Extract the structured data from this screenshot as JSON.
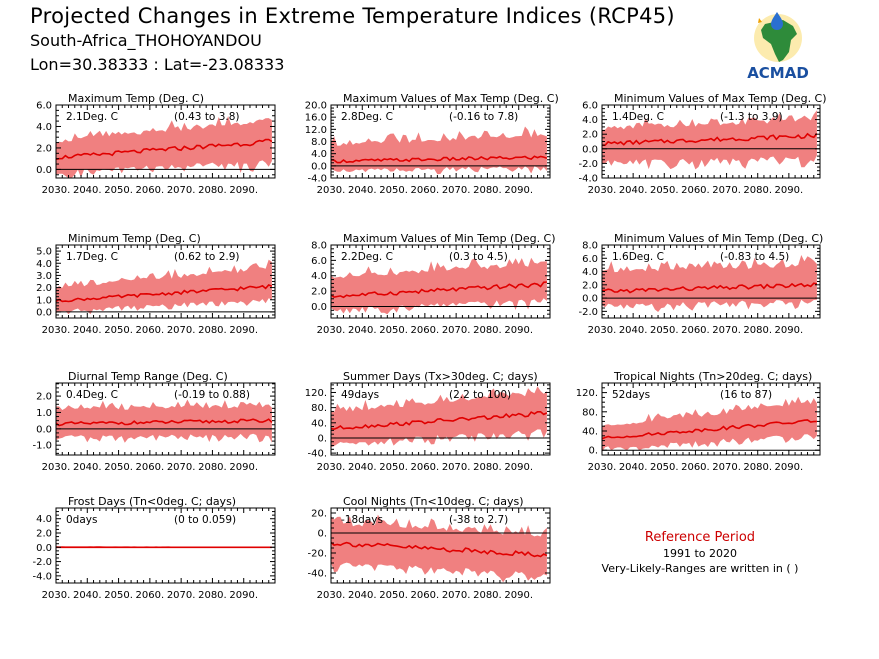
{
  "header": {
    "title": "Projected Changes in Extreme Temperature Indices (RCP45)",
    "subtitle": "South-Africa_THOHOYANDOU",
    "coords": "Lon=30.38333 : Lat=-23.08333"
  },
  "logo": {
    "text": "ACMAD"
  },
  "reference": {
    "title": "Reference Period",
    "years": "1991 to 2020",
    "note": "Very-Likely-Ranges are written in ( )"
  },
  "colors": {
    "band": "#f08080",
    "line": "#e00000",
    "zero": "#000000"
  },
  "chart_data": [
    {
      "type": "area",
      "title": "Maximum Temp (Deg. C)",
      "summary": "2.1Deg. C",
      "range": "(0.43 to 3.8)",
      "x": [
        2030,
        2100
      ],
      "xticks": [
        "2030.",
        "2040.",
        "2050.",
        "2060.",
        "2070.",
        "2080.",
        "2090."
      ],
      "ylim": [
        -0.8,
        6.0
      ],
      "yticks": [
        0.0,
        2.0,
        4.0,
        6.0
      ],
      "ytick_labels": [
        "0.0",
        "2.0",
        "4.0",
        "6.0"
      ],
      "series": [
        {
          "start": 1.1,
          "end": 2.6,
          "lower_start": -0.3,
          "lower_end": 0.8,
          "upper_start": 2.6,
          "upper_end": 4.6
        }
      ]
    },
    {
      "type": "area",
      "title": "Maximum Values of Max Temp (Deg. C)",
      "summary": "2.8Deg. C",
      "range": "(-0.16 to 7.8)",
      "x": [
        2030,
        2100
      ],
      "xticks": [
        "2030.",
        "2040.",
        "2050.",
        "2060.",
        "2070.",
        "2080.",
        "2090."
      ],
      "ylim": [
        -4.0,
        20.0
      ],
      "yticks": [
        -4.0,
        0.0,
        4.0,
        8.0,
        12.0,
        16.0,
        20.0
      ],
      "ytick_labels": [
        "-4.0",
        "0.0",
        "4.0",
        "8.0",
        "12.0",
        "16.0",
        "20.0"
      ],
      "series": [
        {
          "start": 1.5,
          "end": 2.8,
          "lower_start": -1.5,
          "lower_end": -0.5,
          "upper_start": 7.0,
          "upper_end": 10.0
        }
      ]
    },
    {
      "type": "area",
      "title": "Minimum Values of Max Temp (Deg. C)",
      "summary": "1.4Deg. C",
      "range": "(-1.3 to 3.9)",
      "x": [
        2030,
        2100
      ],
      "xticks": [
        "2030.",
        "2040.",
        "2050.",
        "2060.",
        "2070.",
        "2080.",
        "2090."
      ],
      "ylim": [
        -4.0,
        6.0
      ],
      "yticks": [
        -4.0,
        -2.0,
        0.0,
        2.0,
        4.0,
        6.0
      ],
      "ytick_labels": [
        "-4.0",
        "-2.0",
        "0.0",
        "2.0",
        "4.0",
        "6.0"
      ],
      "series": [
        {
          "start": 0.7,
          "end": 1.8,
          "lower_start": -1.8,
          "lower_end": -1.2,
          "upper_start": 2.8,
          "upper_end": 4.0
        }
      ]
    },
    {
      "type": "area",
      "title": "Minimum Temp (Deg. C)",
      "summary": "1.7Deg. C",
      "range": "(0.62 to 2.9)",
      "x": [
        2030,
        2100
      ],
      "xticks": [
        "2030.",
        "2040.",
        "2050.",
        "2060.",
        "2070.",
        "2080.",
        "2090."
      ],
      "ylim": [
        -0.5,
        5.5
      ],
      "yticks": [
        0.0,
        1.0,
        2.0,
        3.0,
        4.0,
        5.0
      ],
      "ytick_labels": [
        "0.0",
        "1.0",
        "2.0",
        "3.0",
        "4.0",
        "5.0"
      ],
      "series": [
        {
          "start": 0.9,
          "end": 2.1,
          "lower_start": 0.1,
          "lower_end": 1.0,
          "upper_start": 2.0,
          "upper_end": 3.6
        }
      ]
    },
    {
      "type": "area",
      "title": "Maximum Values of Min Temp (Deg. C)",
      "summary": "2.2Deg. C",
      "range": "(0.3 to 4.5)",
      "x": [
        2030,
        2100
      ],
      "xticks": [
        "2030.",
        "2040.",
        "2050.",
        "2060.",
        "2070.",
        "2080.",
        "2090."
      ],
      "ylim": [
        -1.5,
        8.0
      ],
      "yticks": [
        0.0,
        2.0,
        4.0,
        6.0,
        8.0
      ],
      "ytick_labels": [
        "0.0",
        "2.0",
        "4.0",
        "6.0",
        "8.0"
      ],
      "series": [
        {
          "start": 1.3,
          "end": 2.9,
          "lower_start": -0.4,
          "lower_end": 0.8,
          "upper_start": 3.8,
          "upper_end": 5.6
        }
      ]
    },
    {
      "type": "area",
      "title": "Minimum Values of Min Temp (Deg. C)",
      "summary": "1.6Deg. C",
      "range": "(-0.83 to 4.5)",
      "x": [
        2030,
        2100
      ],
      "xticks": [
        "2030.",
        "2040.",
        "2050.",
        "2060.",
        "2070.",
        "2080.",
        "2090."
      ],
      "ylim": [
        -3.0,
        8.0
      ],
      "yticks": [
        -2.0,
        0.0,
        2.0,
        4.0,
        6.0,
        8.0
      ],
      "ytick_labels": [
        "-2.0",
        "0.0",
        "2.0",
        "4.0",
        "6.0",
        "8.0"
      ],
      "series": [
        {
          "start": 1.0,
          "end": 2.0,
          "lower_start": -1.2,
          "lower_end": -0.4,
          "upper_start": 4.0,
          "upper_end": 5.0
        }
      ]
    },
    {
      "type": "area",
      "title": "Diurnal Temp Range (Deg. C)",
      "summary": "0.4Deg. C",
      "range": "(-0.19 to 0.88)",
      "x": [
        2030,
        2100
      ],
      "xticks": [
        "2030.",
        "2040.",
        "2050.",
        "2060.",
        "2070.",
        "2080.",
        "2090."
      ],
      "ylim": [
        -1.6,
        2.8
      ],
      "yticks": [
        -1.0,
        0.0,
        1.0,
        2.0
      ],
      "ytick_labels": [
        "-1.0",
        "0.0",
        "1.0",
        "2.0"
      ],
      "series": [
        {
          "start": 0.3,
          "end": 0.5,
          "lower_start": -0.5,
          "lower_end": -0.4,
          "upper_start": 1.2,
          "upper_end": 1.4
        }
      ]
    },
    {
      "type": "area",
      "title": "Summer Days (Tx>30deg. C; days)",
      "summary": "49days",
      "range": "(2.2 to 100)",
      "x": [
        2030,
        2100
      ],
      "xticks": [
        "2030.",
        "2040.",
        "2050.",
        "2060.",
        "2070.",
        "2080.",
        "2090."
      ],
      "ylim": [
        -45,
        145
      ],
      "yticks": [
        -40,
        0,
        40,
        80,
        120
      ],
      "ytick_labels": [
        "-40.",
        "0.",
        "40.",
        "80.",
        "120."
      ],
      "series": [
        {
          "start": 25,
          "end": 65,
          "lower_start": -12,
          "lower_end": 18,
          "upper_start": 70,
          "upper_end": 120
        }
      ]
    },
    {
      "type": "area",
      "title": "Tropical Nights (Tn>20deg. C; days)",
      "summary": "52days",
      "range": "(16 to 87)",
      "x": [
        2030,
        2100
      ],
      "xticks": [
        "2030.",
        "2040.",
        "2050.",
        "2060.",
        "2070.",
        "2080.",
        "2090."
      ],
      "ylim": [
        -10,
        140
      ],
      "yticks": [
        0,
        40,
        80,
        120
      ],
      "ytick_labels": [
        "0.",
        "40.",
        "80.",
        "120."
      ],
      "series": [
        {
          "start": 25,
          "end": 62,
          "lower_start": 5,
          "lower_end": 32,
          "upper_start": 50,
          "upper_end": 100
        }
      ]
    },
    {
      "type": "area",
      "title": "Frost Days (Tn<0deg. C; days)",
      "summary": "0days",
      "range": "(0 to 0.059)",
      "x": [
        2030,
        2100
      ],
      "xticks": [
        "2030.",
        "2040.",
        "2050.",
        "2060.",
        "2070.",
        "2080.",
        "2090."
      ],
      "ylim": [
        -5.0,
        5.5
      ],
      "yticks": [
        -4.0,
        -2.0,
        0.0,
        2.0,
        4.0
      ],
      "ytick_labels": [
        "-4.0",
        "-2.0",
        "0.0",
        "2.0",
        "4.0"
      ],
      "series": [
        {
          "start": 0.0,
          "end": 0.0,
          "lower_start": 0.0,
          "lower_end": 0.0,
          "upper_start": 0.15,
          "upper_end": 0.05
        }
      ]
    },
    {
      "type": "area",
      "title": "Cool Nights (Tn<10deg. C; days)",
      "summary": "-18days",
      "range": "(-38 to 2.7)",
      "x": [
        2030,
        2100
      ],
      "xticks": [
        "2030.",
        "2040.",
        "2050.",
        "2060.",
        "2070.",
        "2080.",
        "2090."
      ],
      "ylim": [
        -50,
        25
      ],
      "yticks": [
        -40,
        -20,
        0,
        20
      ],
      "ytick_labels": [
        "-40.",
        "-20.",
        "0.",
        "20."
      ],
      "series": [
        {
          "start": -10,
          "end": -22,
          "lower_start": -30,
          "lower_end": -42,
          "upper_start": 10,
          "upper_end": -2
        }
      ]
    }
  ]
}
